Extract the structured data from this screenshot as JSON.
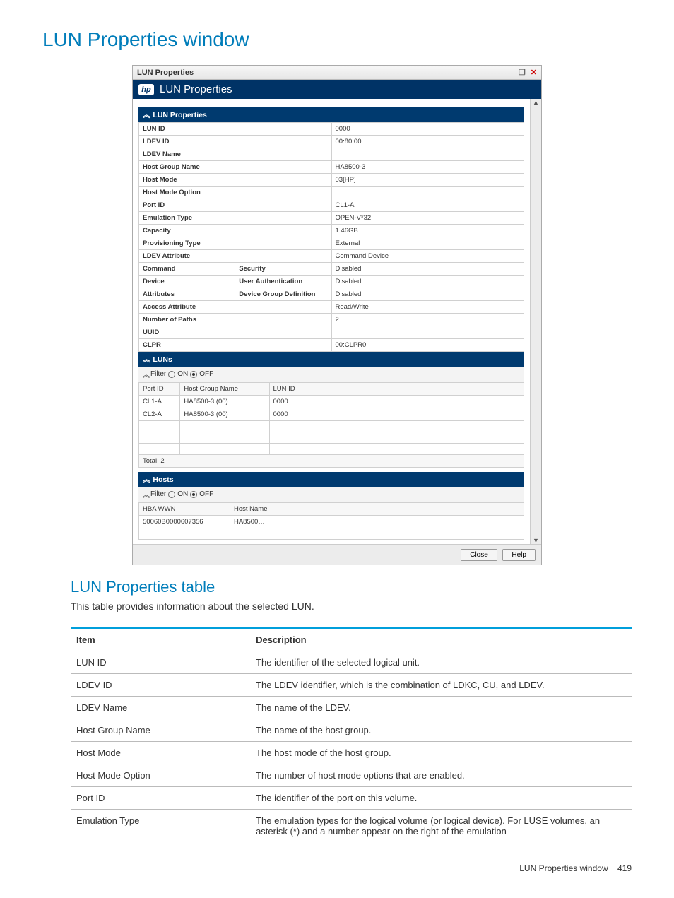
{
  "page": {
    "title": "LUN Properties window",
    "subsection_title": "LUN Properties table",
    "subsection_desc": "This table provides information about the selected LUN.",
    "footer_label": "LUN Properties window",
    "footer_page": "419"
  },
  "window": {
    "titlebar": "LUN Properties",
    "banner": "LUN Properties",
    "hp_logo": "hp",
    "restore_icon": "❐",
    "close_icon": "✕",
    "scroll_up": "▲",
    "scroll_down": "▼",
    "close_btn": "Close",
    "help_btn": "Help"
  },
  "props": {
    "header": "LUN Properties",
    "rows": [
      {
        "label": "LUN ID",
        "value": "0000"
      },
      {
        "label": "LDEV ID",
        "value": "00:80:00"
      },
      {
        "label": "LDEV Name",
        "value": ""
      },
      {
        "label": "Host Group Name",
        "value": "HA8500-3"
      },
      {
        "label": "Host Mode",
        "value": "03[HP]"
      },
      {
        "label": "Host Mode Option",
        "value": ""
      },
      {
        "label": "Port ID",
        "value": "CL1-A"
      },
      {
        "label": "Emulation Type",
        "value": "OPEN-V*32"
      },
      {
        "label": "Capacity",
        "value": "1.46GB"
      },
      {
        "label": "Provisioning Type",
        "value": "External"
      },
      {
        "label": "LDEV Attribute",
        "value": "Command Device"
      }
    ],
    "cmdrows": [
      {
        "l1": "Command",
        "l2": "Security",
        "value": "Disabled"
      },
      {
        "l1": "Device",
        "l2": "User Authentication",
        "value": "Disabled"
      },
      {
        "l1": "Attributes",
        "l2": "Device Group Definition",
        "value": "Disabled"
      }
    ],
    "tail": [
      {
        "label": "Access Attribute",
        "value": "Read/Write"
      },
      {
        "label": "Number of Paths",
        "value": "2"
      },
      {
        "label": "UUID",
        "value": ""
      },
      {
        "label": "CLPR",
        "value": "00:CLPR0"
      }
    ]
  },
  "luns": {
    "header": "LUNs",
    "filter_label": "Filter",
    "on_label": "ON",
    "off_label": "OFF",
    "columns": [
      "Port ID",
      "Host Group Name",
      "LUN ID"
    ],
    "rows": [
      [
        "CL1-A",
        "HA8500-3 (00)",
        "0000"
      ],
      [
        "CL2-A",
        "HA8500-3 (00)",
        "0000"
      ]
    ],
    "total_label": "Total: 2"
  },
  "hosts": {
    "header": "Hosts",
    "filter_label": "Filter",
    "on_label": "ON",
    "off_label": "OFF",
    "columns": [
      "HBA WWN",
      "Host Name"
    ],
    "rows": [
      [
        "50060B0000607356",
        "HA8500…"
      ]
    ]
  },
  "desc_table": {
    "headers": [
      "Item",
      "Description"
    ],
    "rows": [
      [
        "LUN ID",
        "The identifier of the selected logical unit."
      ],
      [
        "LDEV ID",
        "The LDEV identifier, which is the combination of LDKC, CU, and LDEV."
      ],
      [
        "LDEV Name",
        "The name of the LDEV."
      ],
      [
        "Host Group Name",
        "The name of the host group."
      ],
      [
        "Host Mode",
        "The host mode of the host group."
      ],
      [
        "Host Mode Option",
        "The number of host mode options that are enabled."
      ],
      [
        "Port ID",
        "The identifier of the port on this volume."
      ],
      [
        "Emulation Type",
        "The emulation types for the logical volume (or logical device). For LUSE volumes, an asterisk (*) and a number appear on the right of the emulation"
      ]
    ]
  }
}
